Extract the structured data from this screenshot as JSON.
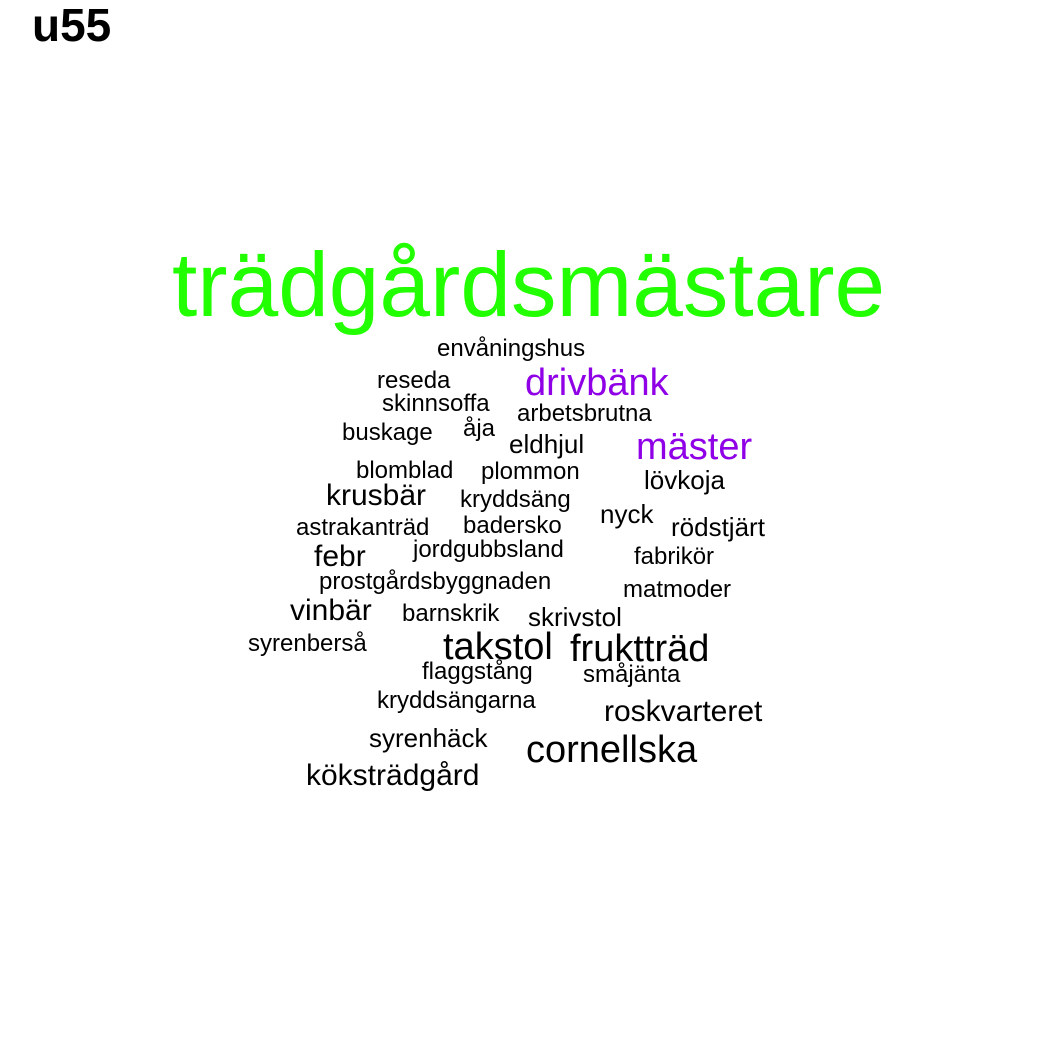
{
  "title": "u55",
  "colors": {
    "primary": "#22ff00",
    "secondary": "#8f00e6",
    "default": "#000000"
  },
  "words": {
    "w0": "trädgårdsmästare",
    "w1": "envåningshus",
    "w2": "reseda",
    "w3": "drivbänk",
    "w4": "skinnsoffa",
    "w5": "arbetsbrutna",
    "w6": "buskage",
    "w7": "åja",
    "w8": "eldhjul",
    "w9": "mäster",
    "w10": "blomblad",
    "w11": "plommon",
    "w12": "lövkoja",
    "w13": "krusbär",
    "w14": "kryddsäng",
    "w15": "nyck",
    "w16": "astrakanträd",
    "w17": "badersko",
    "w18": "rödstjärt",
    "w19": "febr",
    "w20": "jordgubbsland",
    "w21": "fabrikör",
    "w22": "prostgårdsbyggnaden",
    "w23": "matmoder",
    "w24": "vinbär",
    "w25": "barnskrik",
    "w26": "skrivstol",
    "w27": "syrenberså",
    "w28": "takstol",
    "w29": "fruktträd",
    "w30": "flaggstång",
    "w31": "småjänta",
    "w32": "kryddsängarna",
    "w33": "roskvarteret",
    "w34": "syrenhäck",
    "w35": "cornellska",
    "w36": "köksträdgård"
  }
}
